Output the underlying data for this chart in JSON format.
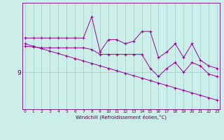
{
  "xlabel": "Windchill (Refroidissement éolien,°C)",
  "background_color": "#cceee8",
  "line_color": "#990099",
  "grid_color": "#99cccc",
  "x_values": [
    0,
    1,
    2,
    3,
    4,
    5,
    6,
    7,
    8,
    9,
    10,
    11,
    12,
    13,
    14,
    15,
    16,
    17,
    18,
    19,
    20,
    21,
    22,
    23
  ],
  "series1": [
    13.2,
    13.2,
    13.2,
    13.2,
    13.2,
    13.2,
    13.2,
    13.2,
    15.8,
    11.5,
    13.0,
    13.0,
    12.5,
    12.8,
    14.0,
    14.0,
    10.8,
    11.5,
    12.5,
    10.8,
    12.5,
    10.5,
    9.8,
    9.5
  ],
  "series2": [
    12.5,
    12.2,
    11.9,
    11.6,
    11.3,
    11.0,
    10.7,
    10.4,
    10.1,
    9.8,
    9.5,
    9.2,
    8.9,
    8.6,
    8.3,
    8.0,
    7.7,
    7.4,
    7.1,
    6.8,
    6.5,
    6.2,
    5.9,
    5.6
  ],
  "series3": [
    12.2,
    12.1,
    12.0,
    12.0,
    12.0,
    12.0,
    12.0,
    12.0,
    11.8,
    11.2,
    11.2,
    11.2,
    11.2,
    11.2,
    11.2,
    9.5,
    8.5,
    9.5,
    10.2,
    9.0,
    10.2,
    9.8,
    8.8,
    8.5
  ],
  "ytick_label": "9",
  "ytick_value": 9.0,
  "xlim": [
    -0.3,
    23.3
  ],
  "ylim": [
    4.5,
    17.5
  ]
}
